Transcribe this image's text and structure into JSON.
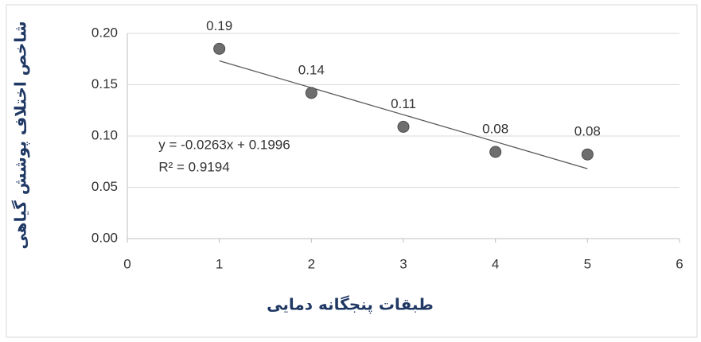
{
  "chart_data": {
    "type": "scatter",
    "xlabel": "طبقات پنجگانه دمایی",
    "ylabel": "شاخص اختلاف پوشش گیاهی",
    "x": [
      1,
      2,
      3,
      4,
      5
    ],
    "values": [
      0.185,
      0.142,
      0.109,
      0.0845,
      0.082
    ],
    "value_labels": [
      "0.19",
      "0.14",
      "0.11",
      "0.08",
      "0.08"
    ],
    "color": "#6e6e6e",
    "xlim": [
      0,
      6
    ],
    "xticks": [
      0,
      1,
      2,
      3,
      4,
      5,
      6
    ],
    "ylim": [
      0,
      0.2
    ],
    "yticks": [
      {
        "value": 0,
        "label": "0.00"
      },
      {
        "value": 0.05,
        "label": "0.05"
      },
      {
        "value": 0.1,
        "label": "0.10"
      },
      {
        "value": 0.15,
        "label": "0.15"
      },
      {
        "value": 0.2,
        "label": "0.20"
      }
    ],
    "grid": true,
    "trendline": {
      "equation": "y = -0.0263x + 0.1996",
      "r2": "R² = 0.9194",
      "slope": -0.0263,
      "intercept": 0.1996
    }
  }
}
